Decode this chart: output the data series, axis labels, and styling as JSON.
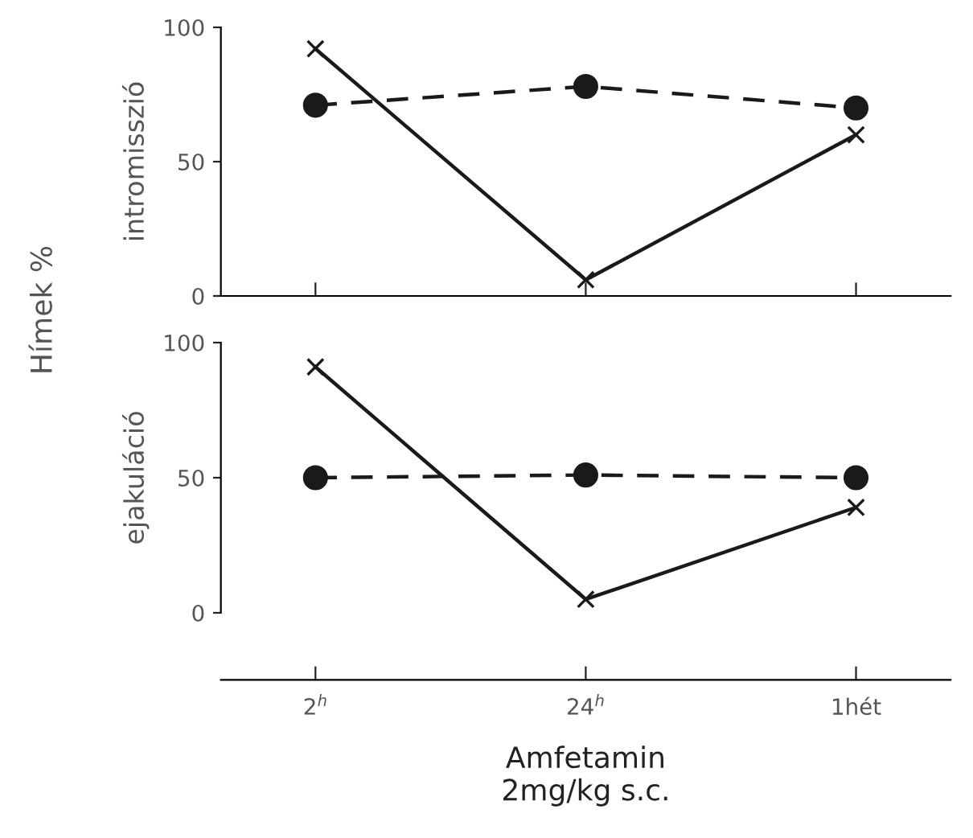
{
  "chart_data": [
    {
      "type": "line",
      "ylabel": "intromisszió",
      "annotations": [
        "Hímek %"
      ],
      "categories": [
        null,
        null,
        null
      ],
      "ylim": [
        0,
        100
      ],
      "yticks": [
        0,
        50,
        100
      ],
      "grid": false,
      "legend": false,
      "series": [
        {
          "color": "#1a1a1a",
          "values": [
            92,
            6,
            60
          ],
          "marker": "cross",
          "line_style": "solid"
        },
        {
          "color": "#1a1a1a",
          "values": [
            71,
            78,
            70
          ],
          "marker": "circle",
          "line_style": "dashed"
        }
      ]
    },
    {
      "type": "line",
      "ylabel": "ejakuláció",
      "xlabel": "Amfetamin\n2mg/kg s.c.",
      "categories": [
        "2$^{h}$",
        "24$^{h}$",
        "1hét"
      ],
      "ylim": [
        0,
        100
      ],
      "yticks": [
        0,
        50,
        100
      ],
      "grid": false,
      "legend": false,
      "series": [
        {
          "color": "#1a1a1a",
          "values": [
            91,
            5,
            39
          ],
          "marker": "cross",
          "line_style": "solid"
        },
        {
          "color": "#1a1a1a",
          "values": [
            50,
            51,
            50
          ],
          "marker": "circle",
          "line_style": "dashed"
        }
      ]
    }
  ]
}
